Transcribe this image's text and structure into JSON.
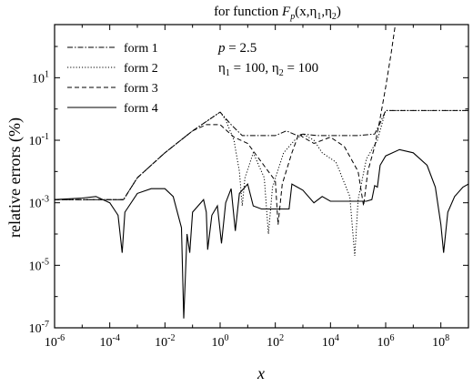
{
  "chart_data": {
    "type": "line",
    "title_text": "for function ",
    "title_math": {
      "F": "F",
      "sub_p": "p",
      "args_open": "(x,η",
      "sub1": "1",
      "comma": ",η",
      "sub2": "2",
      "close": ")"
    },
    "xlabel": "x",
    "ylabel": "relative errors (%)",
    "x_scale": "log",
    "y_scale": "log",
    "xlim_exp": [
      -6,
      9
    ],
    "ylim_exp": [
      -7,
      2.7
    ],
    "x_ticks": [
      {
        "base": "10",
        "exp": "-6",
        "v": -6
      },
      {
        "base": "10",
        "exp": "-4",
        "v": -4
      },
      {
        "base": "10",
        "exp": "-2",
        "v": -2
      },
      {
        "base": "10",
        "exp": "0",
        "v": 0
      },
      {
        "base": "10",
        "exp": "2",
        "v": 2
      },
      {
        "base": "10",
        "exp": "4",
        "v": 4
      },
      {
        "base": "10",
        "exp": "6",
        "v": 6
      },
      {
        "base": "10",
        "exp": "8",
        "v": 8
      }
    ],
    "y_ticks": [
      {
        "base": "10",
        "exp": "-7",
        "v": -7
      },
      {
        "base": "10",
        "exp": "-5",
        "v": -5
      },
      {
        "base": "10",
        "exp": "-3",
        "v": -3
      },
      {
        "base": "10",
        "exp": "-1",
        "v": -1
      },
      {
        "base": "10",
        "exp": "1",
        "v": 1
      }
    ],
    "annotation": {
      "p_label": "p",
      "p_value": " = 2.5",
      "eta1": "η",
      "eta1_sub": "1",
      "eta1_val": " = 100, ",
      "eta2": "η",
      "eta2_sub": "2",
      "eta2_val": " = 100"
    },
    "legend_position": "top-left",
    "series": [
      {
        "name": "form 1",
        "dash": "dashdot",
        "points": [
          [
            -6,
            -2.9
          ],
          [
            -4,
            -2.9
          ],
          [
            -3.5,
            -2.9
          ],
          [
            -3,
            -2.2
          ],
          [
            -2,
            -1.4
          ],
          [
            -1,
            -0.7
          ],
          [
            0,
            -0.1
          ],
          [
            0.4,
            -0.5
          ],
          [
            0.8,
            -0.85
          ],
          [
            1.5,
            -0.85
          ],
          [
            2,
            -0.85
          ],
          [
            2.4,
            -0.7
          ],
          [
            2.8,
            -0.85
          ],
          [
            3,
            -0.8
          ],
          [
            3.5,
            -0.85
          ],
          [
            4,
            -0.85
          ],
          [
            5,
            -0.85
          ],
          [
            5.6,
            -0.8
          ],
          [
            5.8,
            -0.45
          ],
          [
            6,
            -0.05
          ],
          [
            7,
            -0.05
          ],
          [
            8,
            -0.05
          ],
          [
            9,
            -0.05
          ]
        ]
      },
      {
        "name": "form 2",
        "dash": "dotted",
        "points": [
          [
            -6,
            -2.9
          ],
          [
            -4,
            -2.9
          ],
          [
            -3.5,
            -2.9
          ],
          [
            -3,
            -2.2
          ],
          [
            -2,
            -1.4
          ],
          [
            -1,
            -0.7
          ],
          [
            0,
            -0.1
          ],
          [
            0.2,
            -0.35
          ],
          [
            0.5,
            -1.0
          ],
          [
            0.7,
            -2.0
          ],
          [
            0.8,
            -3.1
          ],
          [
            0.9,
            -2.2
          ],
          [
            1.2,
            -1.4
          ],
          [
            1.6,
            -2.2
          ],
          [
            1.75,
            -4.0
          ],
          [
            1.9,
            -2.5
          ],
          [
            2.3,
            -1.4
          ],
          [
            2.7,
            -1.0
          ],
          [
            3,
            -0.8
          ],
          [
            3.4,
            -1.0
          ],
          [
            3.7,
            -1.4
          ],
          [
            4.2,
            -1.7
          ],
          [
            4.7,
            -2.8
          ],
          [
            4.88,
            -4.7
          ],
          [
            5.0,
            -2.9
          ],
          [
            5.3,
            -1.6
          ],
          [
            5.7,
            -1.0
          ],
          [
            6,
            -0.05
          ],
          [
            7,
            -0.05
          ],
          [
            9,
            -0.05
          ]
        ]
      },
      {
        "name": "form 3",
        "dash": "dashed",
        "points": [
          [
            -6,
            -2.9
          ],
          [
            -4,
            -2.9
          ],
          [
            -3.5,
            -2.9
          ],
          [
            -3,
            -2.2
          ],
          [
            -2,
            -1.4
          ],
          [
            -1,
            -0.7
          ],
          [
            -0.5,
            -0.5
          ],
          [
            0,
            -0.5
          ],
          [
            0.5,
            -0.9
          ],
          [
            1,
            -1.1
          ],
          [
            1.5,
            -1.7
          ],
          [
            2,
            -2.3
          ],
          [
            2.1,
            -3.7
          ],
          [
            2.25,
            -2.4
          ],
          [
            2.6,
            -1.4
          ],
          [
            2.85,
            -0.8
          ],
          [
            3.0,
            -0.9
          ],
          [
            3.4,
            -1.1
          ],
          [
            4,
            -0.9
          ],
          [
            4.5,
            -1.2
          ],
          [
            5,
            -2.0
          ],
          [
            5.2,
            -3.1
          ],
          [
            5.35,
            -2.0
          ],
          [
            5.6,
            -1.2
          ],
          [
            5.8,
            -0.3
          ],
          [
            6.0,
            0.7
          ],
          [
            6.2,
            1.8
          ],
          [
            6.35,
            2.7
          ]
        ]
      },
      {
        "name": "form 4",
        "dash": "solid",
        "points": [
          [
            -6,
            -2.9
          ],
          [
            -5,
            -2.85
          ],
          [
            -4.5,
            -2.8
          ],
          [
            -4,
            -3.0
          ],
          [
            -3.7,
            -3.4
          ],
          [
            -3.55,
            -4.6
          ],
          [
            -3.45,
            -3.3
          ],
          [
            -3,
            -2.7
          ],
          [
            -2.5,
            -2.55
          ],
          [
            -2,
            -2.55
          ],
          [
            -1.7,
            -2.8
          ],
          [
            -1.4,
            -3.8
          ],
          [
            -1.32,
            -6.7
          ],
          [
            -1.2,
            -4.0
          ],
          [
            -1.1,
            -4.6
          ],
          [
            -1.0,
            -3.3
          ],
          [
            -0.6,
            -2.9
          ],
          [
            -0.5,
            -3.3
          ],
          [
            -0.45,
            -4.5
          ],
          [
            -0.3,
            -3.4
          ],
          [
            -0.1,
            -3.1
          ],
          [
            0.05,
            -4.3
          ],
          [
            0.2,
            -3.0
          ],
          [
            0.4,
            -2.55
          ],
          [
            0.55,
            -3.9
          ],
          [
            0.7,
            -2.7
          ],
          [
            1.0,
            -2.4
          ],
          [
            1.2,
            -3.1
          ],
          [
            1.5,
            -3.2
          ],
          [
            2,
            -3.2
          ],
          [
            2.5,
            -3.2
          ],
          [
            2.6,
            -2.4
          ],
          [
            2.8,
            -2.5
          ],
          [
            3.0,
            -2.6
          ],
          [
            3.4,
            -3.0
          ],
          [
            3.7,
            -2.8
          ],
          [
            4,
            -2.95
          ],
          [
            5,
            -2.95
          ],
          [
            5.3,
            -2.95
          ],
          [
            5.5,
            -2.9
          ],
          [
            5.6,
            -2.45
          ],
          [
            5.7,
            -2.5
          ],
          [
            5.8,
            -1.8
          ],
          [
            6,
            -1.5
          ],
          [
            6.5,
            -1.3
          ],
          [
            7,
            -1.4
          ],
          [
            7.5,
            -1.8
          ],
          [
            7.8,
            -2.5
          ],
          [
            8.0,
            -3.7
          ],
          [
            8.1,
            -4.6
          ],
          [
            8.25,
            -3.3
          ],
          [
            8.5,
            -2.8
          ],
          [
            8.8,
            -2.5
          ],
          [
            9,
            -2.4
          ]
        ]
      }
    ],
    "colors": {
      "line": "#000000",
      "axis": "#000000",
      "background": "#ffffff"
    }
  }
}
